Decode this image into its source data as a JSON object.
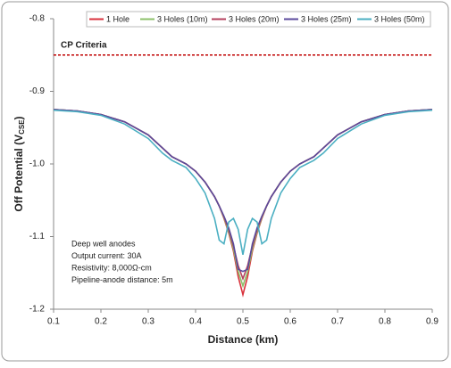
{
  "chart_data": {
    "type": "line",
    "xlabel": "Distance (km)",
    "ylabel": [
      "Off Potential (V",
      "CSE",
      ")"
    ],
    "x": [
      0.1,
      0.15,
      0.2,
      0.25,
      0.3,
      0.33,
      0.35,
      0.38,
      0.4,
      0.42,
      0.44,
      0.45,
      0.46,
      0.47,
      0.48,
      0.49,
      0.5,
      0.51,
      0.52,
      0.53,
      0.54,
      0.55,
      0.56,
      0.58,
      0.6,
      0.62,
      0.65,
      0.67,
      0.7,
      0.75,
      0.8,
      0.85,
      0.9
    ],
    "series": [
      {
        "name": "1 Hole",
        "color": "#d9323c",
        "values": [
          -0.925,
          -0.927,
          -0.932,
          -0.942,
          -0.96,
          -0.978,
          -0.99,
          -1.0,
          -1.01,
          -1.025,
          -1.045,
          -1.058,
          -1.075,
          -1.095,
          -1.12,
          -1.155,
          -1.18,
          -1.155,
          -1.12,
          -1.095,
          -1.075,
          -1.058,
          -1.045,
          -1.025,
          -1.01,
          -1.0,
          -0.99,
          -0.978,
          -0.96,
          -0.942,
          -0.932,
          -0.927,
          -0.925
        ]
      },
      {
        "name": "3 Holes (10m)",
        "color": "#8cc06a",
        "values": [
          -0.925,
          -0.927,
          -0.932,
          -0.942,
          -0.96,
          -0.978,
          -0.99,
          -1.0,
          -1.01,
          -1.025,
          -1.045,
          -1.058,
          -1.074,
          -1.093,
          -1.117,
          -1.148,
          -1.168,
          -1.148,
          -1.117,
          -1.093,
          -1.074,
          -1.058,
          -1.045,
          -1.025,
          -1.01,
          -1.0,
          -0.99,
          -0.978,
          -0.96,
          -0.942,
          -0.932,
          -0.927,
          -0.925
        ]
      },
      {
        "name": "3 Holes (20m)",
        "color": "#b5405e",
        "values": [
          -0.925,
          -0.927,
          -0.932,
          -0.942,
          -0.96,
          -0.978,
          -0.99,
          -1.0,
          -1.01,
          -1.025,
          -1.045,
          -1.058,
          -1.073,
          -1.09,
          -1.113,
          -1.14,
          -1.158,
          -1.14,
          -1.113,
          -1.09,
          -1.073,
          -1.058,
          -1.045,
          -1.025,
          -1.01,
          -1.0,
          -0.99,
          -0.978,
          -0.96,
          -0.942,
          -0.932,
          -0.927,
          -0.925
        ]
      },
      {
        "name": "3 Holes (25m)",
        "color": "#5b4a9c",
        "values": [
          -0.925,
          -0.927,
          -0.932,
          -0.942,
          -0.96,
          -0.978,
          -0.99,
          -1.0,
          -1.01,
          -1.025,
          -1.045,
          -1.058,
          -1.072,
          -1.088,
          -1.11,
          -1.145,
          -1.148,
          -1.145,
          -1.11,
          -1.088,
          -1.072,
          -1.058,
          -1.045,
          -1.025,
          -1.01,
          -1.0,
          -0.99,
          -0.978,
          -0.96,
          -0.942,
          -0.932,
          -0.927,
          -0.925
        ]
      },
      {
        "name": "3 Holes (50m)",
        "color": "#4bafc2",
        "values": [
          -0.926,
          -0.928,
          -0.933,
          -0.945,
          -0.965,
          -0.985,
          -0.995,
          -1.005,
          -1.02,
          -1.04,
          -1.075,
          -1.105,
          -1.11,
          -1.08,
          -1.075,
          -1.09,
          -1.125,
          -1.09,
          -1.075,
          -1.08,
          -1.11,
          -1.105,
          -1.075,
          -1.04,
          -1.02,
          -1.005,
          -0.995,
          -0.985,
          -0.965,
          -0.945,
          -0.933,
          -0.928,
          -0.926
        ]
      }
    ],
    "xlim": [
      0.1,
      0.9
    ],
    "xticks": [
      0.1,
      0.2,
      0.3,
      0.4,
      0.5,
      0.6,
      0.7,
      0.8,
      0.9
    ],
    "ylim": [
      -1.2,
      -0.8
    ],
    "yticks": [
      -0.8,
      -0.9,
      {
        "value": -1,
        "label": "-1.0"
      },
      -1.1,
      -1.2
    ],
    "grid": false,
    "legend": "top",
    "cp_criteria": {
      "label": "CP Criteria",
      "value": -0.85,
      "color": "#c00000"
    },
    "annotation": [
      "Deep well anodes",
      "Output current: 30A",
      "Resistivity: 8,000Ω-cm",
      "Pipeline-anode distance: 5m"
    ]
  }
}
